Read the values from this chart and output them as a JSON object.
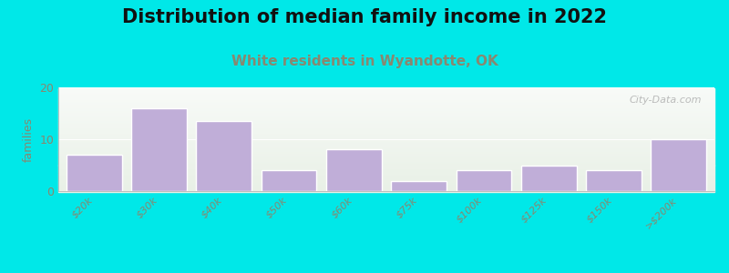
{
  "title": "Distribution of median family income in 2022",
  "subtitle": "White residents in Wyandotte, OK",
  "categories": [
    "$20k",
    "$30k",
    "$40k",
    "$50k",
    "$60k",
    "$75k",
    "$100k",
    "$125k",
    "$150k",
    ">$200k"
  ],
  "values": [
    7,
    16,
    13.5,
    4,
    8,
    2,
    4,
    5,
    4,
    10
  ],
  "bar_color": "#c0aed8",
  "bar_edgecolor": "#ffffff",
  "background_outer": "#00e8e8",
  "ylabel": "families",
  "ylim": [
    0,
    20
  ],
  "yticks": [
    0,
    10,
    20
  ],
  "title_fontsize": 15,
  "title_color": "#111111",
  "subtitle_fontsize": 11,
  "subtitle_color": "#888870",
  "watermark": "City-Data.com",
  "watermark_color": "#b0b0b0",
  "tick_label_color": "#888870",
  "tick_label_fontsize": 8,
  "ylabel_fontsize": 9,
  "ylabel_color": "#888870"
}
